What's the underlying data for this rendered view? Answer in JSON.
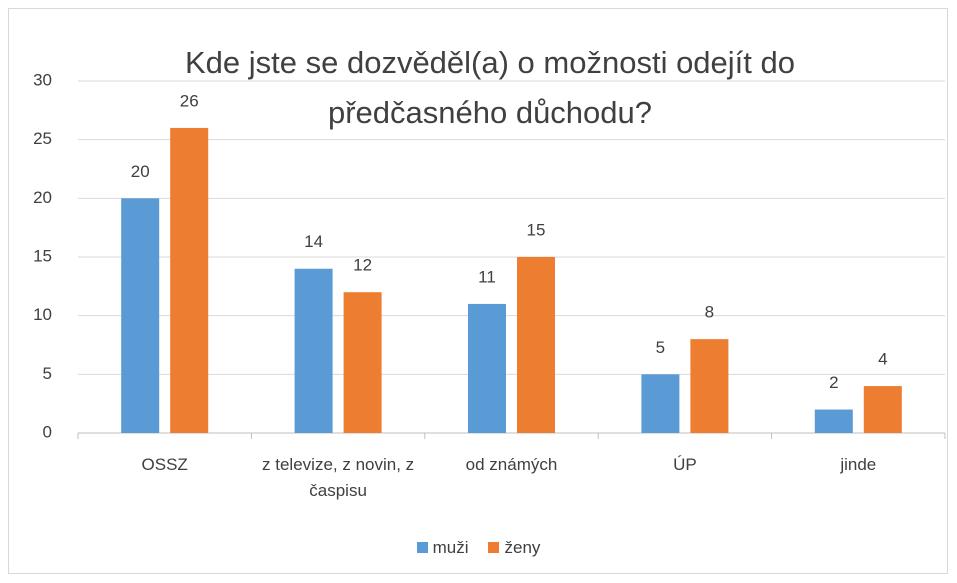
{
  "chart_data": {
    "type": "bar",
    "title": "Kde jste se dozvěděl(a) o možnosti odejít do předčasného důchodu?",
    "categories": [
      "OSSZ",
      "z televize, z novin, z časpisu",
      "od známých",
      "ÚP",
      "jinde"
    ],
    "series": [
      {
        "name": "muži",
        "color": "#5b9bd5",
        "values": [
          20,
          14,
          11,
          5,
          2
        ]
      },
      {
        "name": "ženy",
        "color": "#ed7d31",
        "values": [
          26,
          12,
          15,
          8,
          4
        ]
      }
    ],
    "ylim": [
      0,
      30
    ],
    "yticks": [
      0,
      5,
      10,
      15,
      20,
      25,
      30
    ],
    "grid": true,
    "legend": "bottom"
  }
}
